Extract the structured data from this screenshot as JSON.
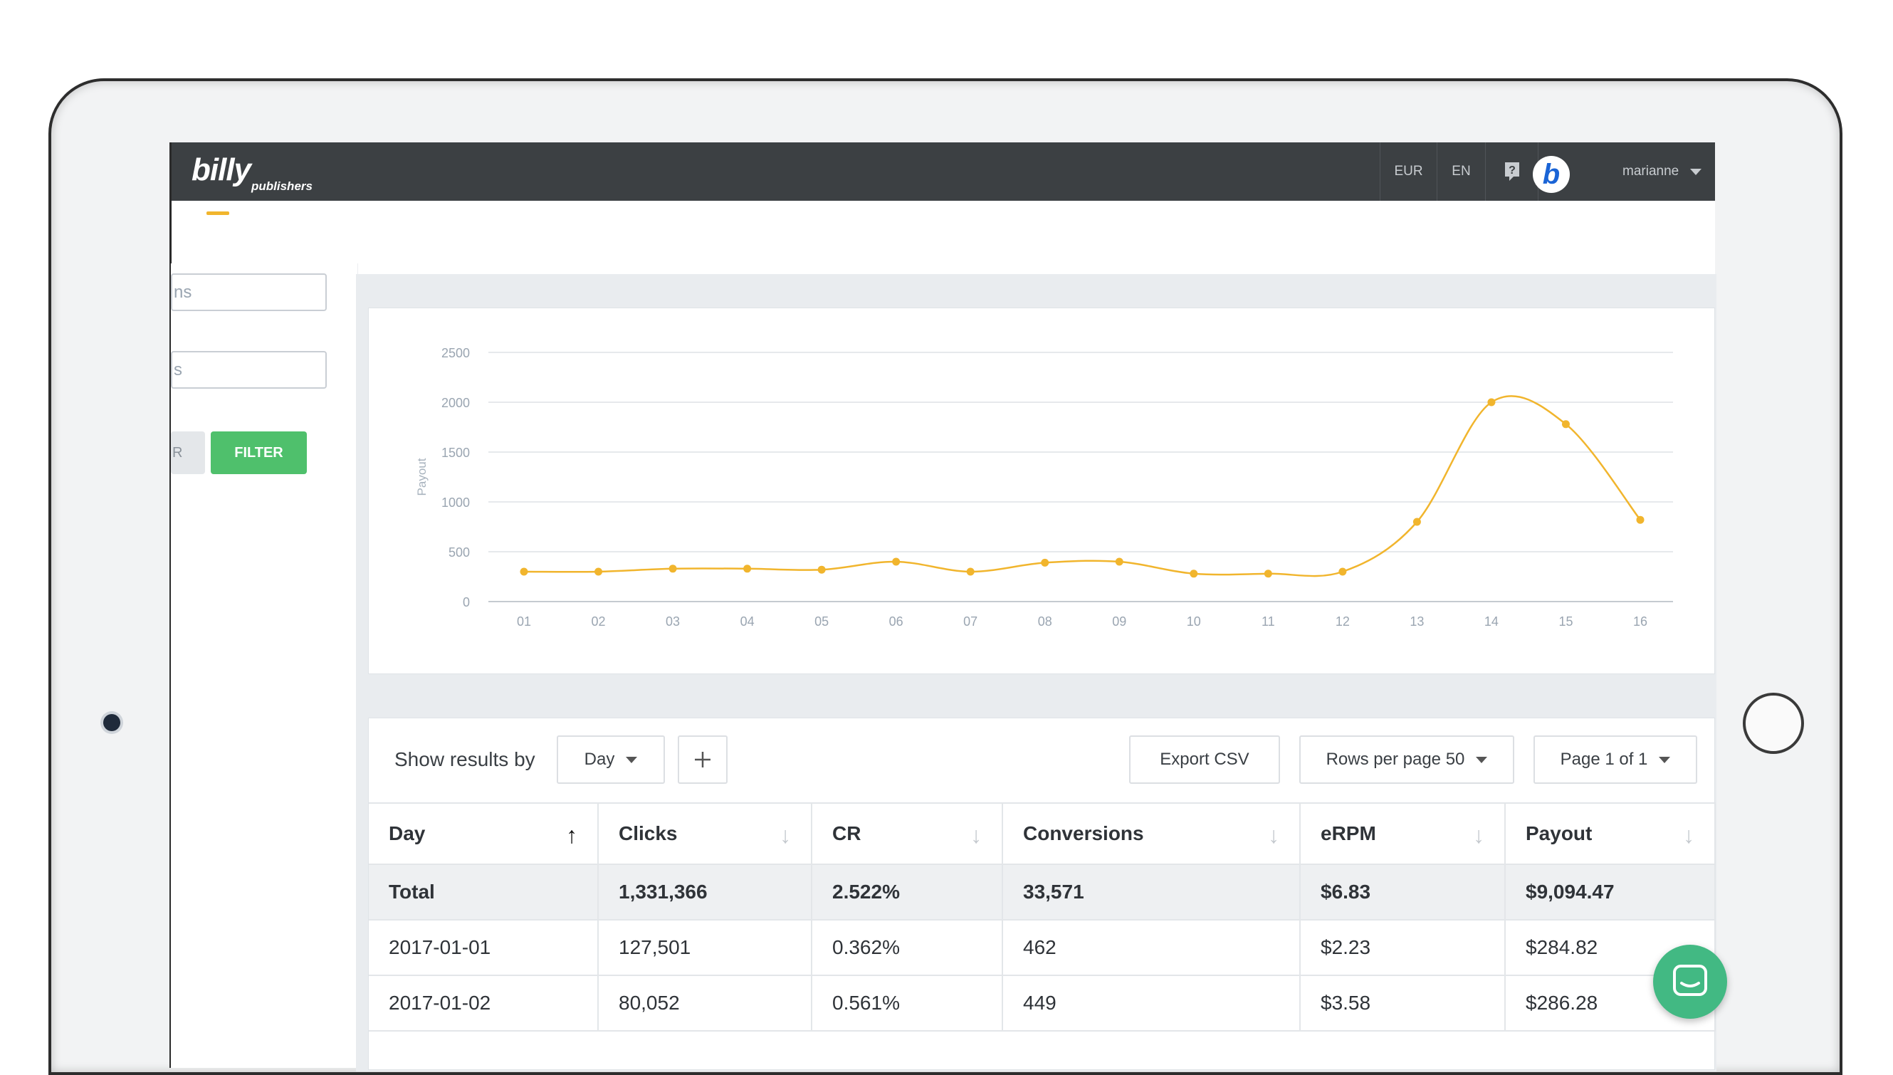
{
  "topbar": {
    "logo": "billy",
    "logo_sub": "publishers",
    "currency": "EUR",
    "language": "EN",
    "help_icon": "help-icon",
    "avatar_letter": "b",
    "username": "marianne"
  },
  "filters": {
    "field1_fragment": "ns",
    "field2_fragment": "s",
    "clear_fragment": "R",
    "filter_label": "FILTER"
  },
  "chart_data": {
    "type": "line",
    "ylabel": "Payout",
    "ylim": [
      0,
      2500
    ],
    "yticks": [
      0,
      500,
      1000,
      1500,
      2000,
      2500
    ],
    "x": [
      "01",
      "02",
      "03",
      "04",
      "05",
      "06",
      "07",
      "08",
      "09",
      "10",
      "11",
      "12",
      "13",
      "14",
      "15",
      "16"
    ],
    "values": [
      300,
      300,
      330,
      330,
      320,
      400,
      300,
      390,
      400,
      280,
      280,
      300,
      800,
      2000,
      1780,
      820
    ],
    "color": "#f1b52d",
    "grid": true
  },
  "controls": {
    "show_results_by": "Show results by",
    "group_by": "Day",
    "add_icon": "plus-icon",
    "export": "Export CSV",
    "rows_per_page": "Rows per page 50",
    "page": "Page 1 of 1"
  },
  "table": {
    "headers": [
      "Day",
      "Clicks",
      "CR",
      "Conversions",
      "eRPM",
      "Payout"
    ],
    "total": [
      "Total",
      "1,331,366",
      "2.522%",
      "33,571",
      "$6.83",
      "$9,094.47"
    ],
    "rows": [
      [
        "2017-01-01",
        "127,501",
        "0.362%",
        "462",
        "$2.23",
        "$284.82"
      ],
      [
        "2017-01-02",
        "80,052",
        "0.561%",
        "449",
        "$3.58",
        "$286.28"
      ]
    ]
  },
  "chat_icon": "chat-icon"
}
